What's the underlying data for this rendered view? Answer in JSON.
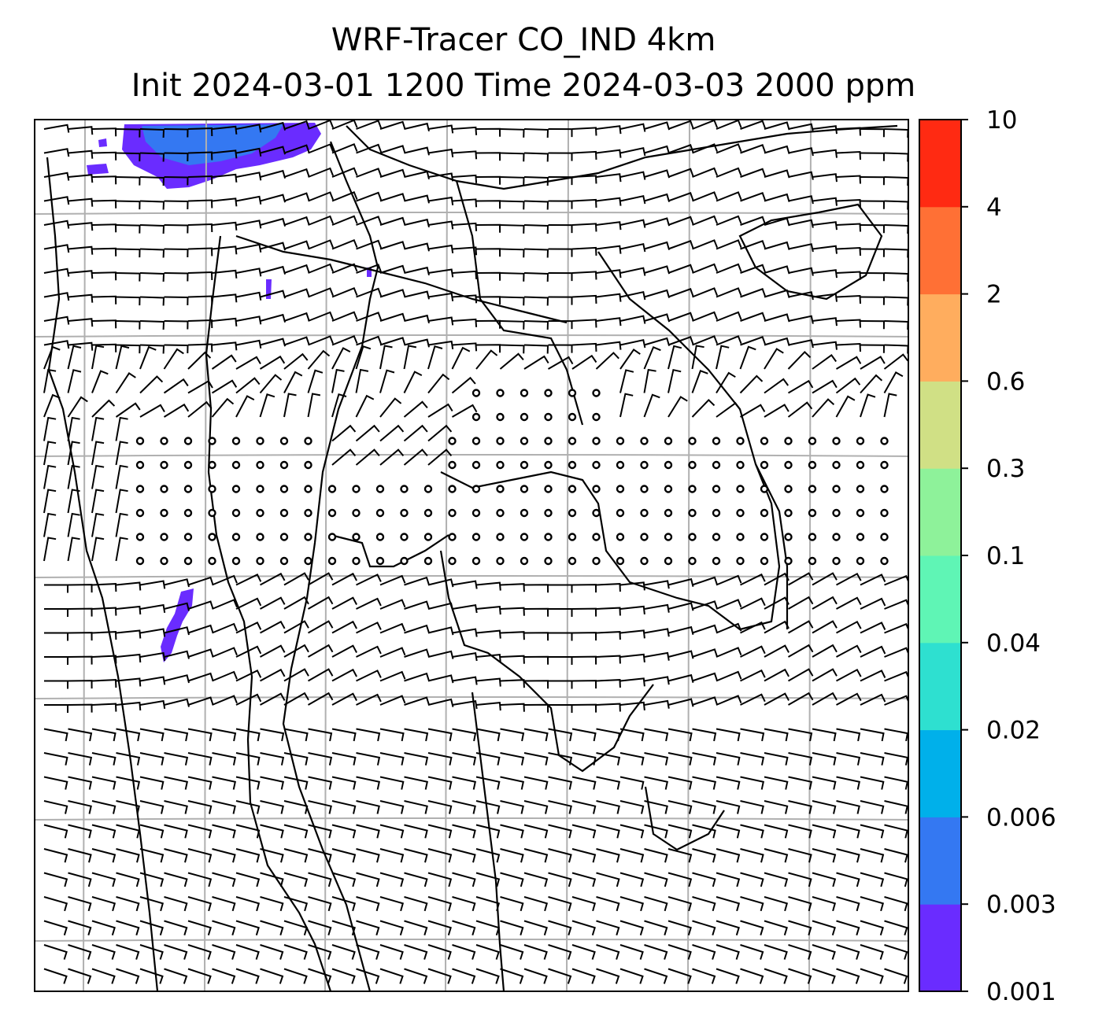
{
  "title": {
    "line1": "WRF-Tracer CO_IND 4km",
    "line2": "Init 2024-03-01 1200 Time 2024-03-03 2000 ppm"
  },
  "colorbar": {
    "levels": [
      "0.001",
      "0.003",
      "0.006",
      "0.02",
      "0.04",
      "0.1",
      "0.3",
      "0.6",
      "2",
      "4",
      "10"
    ],
    "colors": [
      "#6a2cff",
      "#3478f2",
      "#00b0ea",
      "#2ee0d0",
      "#5ff5b5",
      "#8ef29a",
      "#d0e085",
      "#ffad5e",
      "#ff7035",
      "#ff2a12"
    ]
  },
  "map": {
    "features": [
      "coastline-borders",
      "graticule",
      "wind-barbs",
      "co-tracer-concentration"
    ],
    "tracer_color_main": "#6a2cff",
    "tracer_color_secondary": "#3478f2",
    "gridline_color": "#b0b0b0"
  }
}
